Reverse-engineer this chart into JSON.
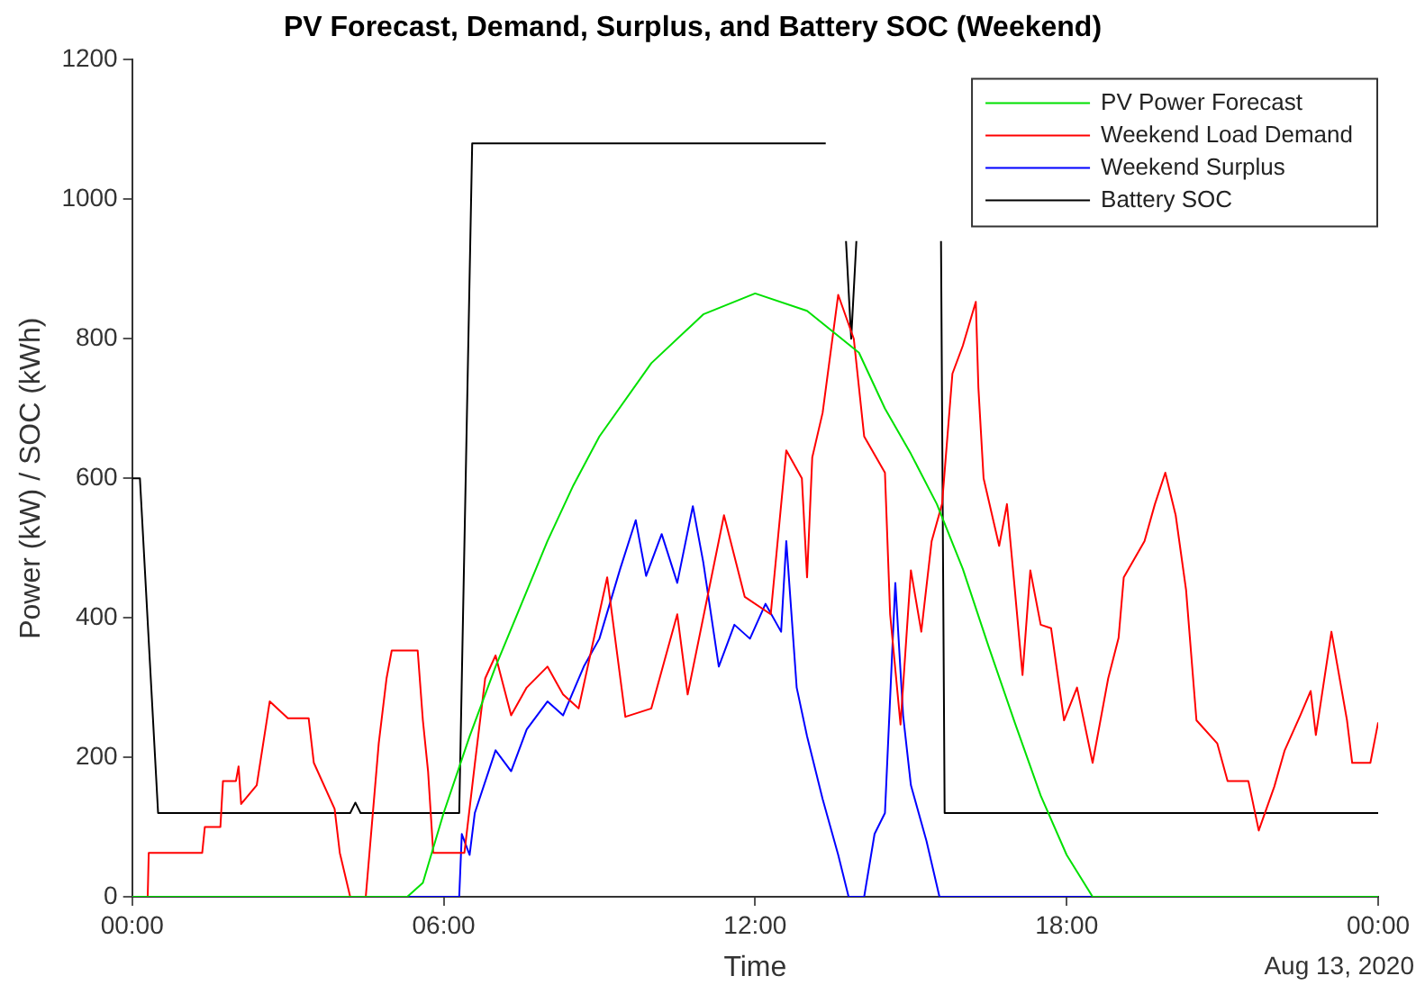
{
  "chart_data": {
    "type": "line",
    "title": "PV Forecast, Demand, Surplus, and Battery SOC (Weekend)",
    "xlabel": "Time",
    "ylabel": "Power (kW) / SOC (kWh)",
    "xlim": [
      0,
      24
    ],
    "xticks": [
      {
        "value": 0,
        "label": "00:00"
      },
      {
        "value": 6,
        "label": "06:00"
      },
      {
        "value": 12,
        "label": "12:00"
      },
      {
        "value": 18,
        "label": "18:00"
      },
      {
        "value": 24,
        "label": "00:00"
      }
    ],
    "ylim": [
      0,
      1200
    ],
    "yticks": [
      0,
      200,
      400,
      600,
      800,
      1000,
      1200
    ],
    "grid": false,
    "legend": "top right",
    "marker": "none",
    "line_style": "solid",
    "annotations": [
      "Aug 13, 2020"
    ],
    "series": [
      {
        "name": "PV Power Forecast",
        "color": "#00e000",
        "x": [
          0,
          5.3,
          5.6,
          6,
          6.5,
          7,
          7.5,
          8,
          8.5,
          9,
          10,
          11,
          12,
          13,
          14,
          14.5,
          15,
          15.5,
          16,
          16.5,
          17,
          17.5,
          18,
          18.5,
          24
        ],
        "values": [
          0,
          0,
          20,
          120,
          230,
          330,
          420,
          510,
          590,
          660,
          765,
          835,
          865,
          840,
          780,
          700,
          635,
          563,
          470,
          358,
          250,
          145,
          60,
          0,
          0
        ]
      },
      {
        "name": "Weekend Load Demand",
        "color": "#ff0000",
        "x": [
          0,
          0.3,
          0.32,
          1.35,
          1.4,
          1.7,
          1.75,
          2.0,
          2.05,
          2.1,
          2.4,
          2.65,
          3.0,
          3.4,
          3.5,
          3.9,
          4.0,
          4.2,
          4.5,
          4.75,
          4.9,
          5.0,
          5.5,
          5.6,
          5.7,
          5.8,
          6.4,
          6.6,
          6.8,
          7.0,
          7.3,
          7.6,
          8.0,
          8.3,
          8.6,
          9.15,
          9.5,
          10.0,
          10.5,
          10.7,
          11.4,
          11.8,
          12.3,
          12.6,
          12.9,
          13.0,
          13.1,
          13.3,
          13.6,
          13.9,
          14.1,
          14.5,
          14.6,
          14.8,
          15.0,
          15.2,
          15.4,
          15.6,
          15.8,
          16.0,
          16.25,
          16.3,
          16.4,
          16.7,
          16.85,
          17.0,
          17.15,
          17.3,
          17.5,
          17.7,
          17.95,
          18.2,
          18.5,
          18.8,
          19.0,
          19.1,
          19.5,
          19.7,
          19.9,
          20.1,
          20.3,
          20.5,
          20.9,
          21.1,
          21.5,
          21.7,
          22.0,
          22.2,
          22.5,
          22.7,
          22.8,
          23.1,
          23.4,
          23.5,
          23.85,
          24
        ],
        "values": [
          0,
          0,
          63,
          63,
          100,
          100,
          166,
          166,
          187,
          133,
          160,
          280,
          256,
          256,
          192,
          126,
          63,
          0,
          0,
          220,
          313,
          353,
          353,
          253,
          180,
          63,
          63,
          190,
          313,
          346,
          260,
          300,
          330,
          290,
          270,
          458,
          258,
          270,
          405,
          290,
          547,
          430,
          405,
          640,
          600,
          458,
          630,
          694,
          863,
          800,
          660,
          608,
          405,
          247,
          468,
          380,
          510,
          563,
          750,
          790,
          853,
          730,
          600,
          503,
          563,
          442,
          318,
          468,
          390,
          385,
          253,
          300,
          192,
          313,
          371,
          458,
          510,
          563,
          608,
          547,
          440,
          253,
          220,
          166,
          166,
          95,
          158,
          210,
          260,
          295,
          232,
          380,
          253,
          192,
          192,
          250
        ]
      },
      {
        "name": "Weekend Surplus",
        "color": "#0000ff",
        "x": [
          0,
          6.3,
          6.35,
          6.5,
          6.6,
          7,
          7.3,
          7.6,
          8,
          8.3,
          8.7,
          9,
          9.4,
          9.7,
          9.9,
          10.2,
          10.5,
          10.8,
          11,
          11.3,
          11.6,
          11.9,
          12.2,
          12.5,
          12.6,
          12.8,
          13,
          13.3,
          13.6,
          13.8,
          14.1,
          14.3,
          14.5,
          14.7,
          14.85,
          15,
          15.3,
          15.55,
          24
        ],
        "values": [
          0,
          0,
          90,
          60,
          120,
          210,
          180,
          240,
          280,
          260,
          330,
          370,
          470,
          540,
          460,
          520,
          450,
          560,
          480,
          330,
          390,
          370,
          420,
          380,
          510,
          300,
          230,
          140,
          60,
          0,
          0,
          90,
          120,
          450,
          260,
          160,
          80,
          0,
          0
        ]
      },
      {
        "name": "Battery SOC",
        "color": "#000000",
        "x": [
          0,
          0.15,
          0.5,
          4.2,
          4.3,
          4.4,
          6.3,
          6.55,
          13.36,
          13.5,
          13.75,
          13.85,
          13.95,
          14.2,
          15.58,
          15.65,
          24
        ],
        "values": [
          600,
          600,
          120,
          120,
          135,
          120,
          120,
          1080,
          1080,
          null,
          940,
          800,
          940,
          null,
          940,
          120,
          120
        ]
      }
    ]
  }
}
